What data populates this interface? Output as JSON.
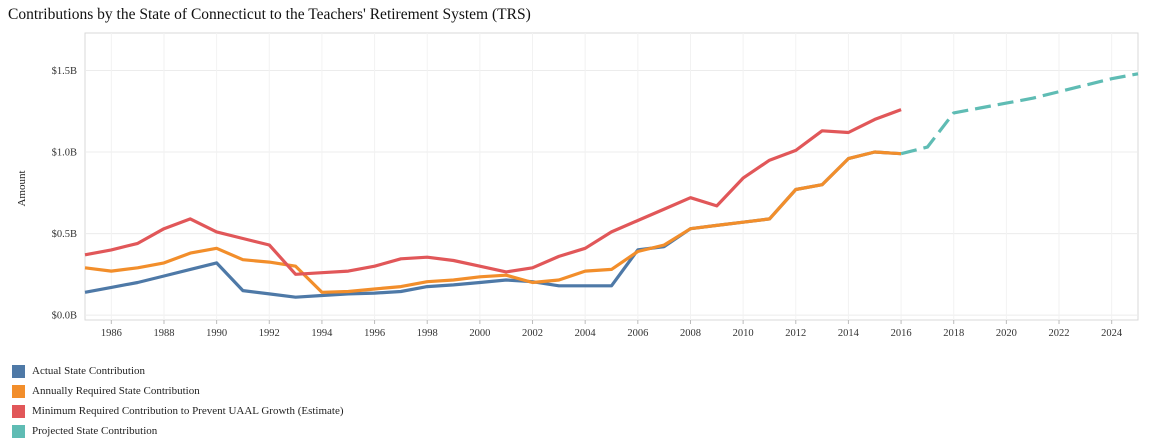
{
  "title": "Contributions by the State of Connecticut to the Teachers' Retirement System (TRS)",
  "chart_data": {
    "type": "line",
    "title": "Contributions by the State of Connecticut to the Teachers' Retirement System (TRS)",
    "ylabel": "Amount",
    "xlabel": "",
    "xlim": [
      1985,
      2025
    ],
    "ylim": [
      -0.03,
      1.73
    ],
    "grid": true,
    "legend_position": "bottom-left",
    "x_ticks": [
      1986,
      1988,
      1990,
      1992,
      1994,
      1996,
      1998,
      2000,
      2002,
      2004,
      2006,
      2008,
      2010,
      2012,
      2014,
      2016,
      2018,
      2020,
      2022,
      2024
    ],
    "y_ticks": [
      {
        "value": 0.0,
        "label": "$0.0B"
      },
      {
        "value": 0.5,
        "label": "$0.5B"
      },
      {
        "value": 1.0,
        "label": "$1.0B"
      },
      {
        "value": 1.5,
        "label": "$1.5B"
      }
    ],
    "series": [
      {
        "name": "Actual State Contribution",
        "color": "#4e79a7",
        "style": "solid",
        "points": [
          [
            1985,
            0.14
          ],
          [
            1986,
            0.17
          ],
          [
            1987,
            0.2
          ],
          [
            1988,
            0.24
          ],
          [
            1989,
            0.28
          ],
          [
            1990,
            0.32
          ],
          [
            1991,
            0.15
          ],
          [
            1992,
            0.13
          ],
          [
            1993,
            0.11
          ],
          [
            1994,
            0.12
          ],
          [
            1995,
            0.13
          ],
          [
            1996,
            0.135
          ],
          [
            1997,
            0.145
          ],
          [
            1998,
            0.175
          ],
          [
            1999,
            0.185
          ],
          [
            2000,
            0.2
          ],
          [
            2001,
            0.215
          ],
          [
            2002,
            0.205
          ],
          [
            2003,
            0.18
          ],
          [
            2004,
            0.18
          ],
          [
            2005,
            0.18
          ],
          [
            2006,
            0.4
          ],
          [
            2007,
            0.42
          ],
          [
            2008,
            0.53
          ],
          [
            2009,
            0.55
          ],
          [
            2010,
            0.57
          ],
          [
            2011,
            0.59
          ],
          [
            2012,
            0.77
          ],
          [
            2013,
            0.8
          ],
          [
            2014,
            0.96
          ],
          [
            2015,
            1.0
          ],
          [
            2016,
            0.99
          ]
        ]
      },
      {
        "name": "Annually Required State Contribution",
        "color": "#f28e2b",
        "style": "solid",
        "points": [
          [
            1985,
            0.29
          ],
          [
            1986,
            0.27
          ],
          [
            1987,
            0.29
          ],
          [
            1988,
            0.32
          ],
          [
            1989,
            0.38
          ],
          [
            1990,
            0.41
          ],
          [
            1991,
            0.34
          ],
          [
            1992,
            0.325
          ],
          [
            1993,
            0.3
          ],
          [
            1994,
            0.14
          ],
          [
            1995,
            0.145
          ],
          [
            1996,
            0.16
          ],
          [
            1997,
            0.175
          ],
          [
            1998,
            0.205
          ],
          [
            1999,
            0.215
          ],
          [
            2000,
            0.235
          ],
          [
            2001,
            0.245
          ],
          [
            2002,
            0.2
          ],
          [
            2003,
            0.215
          ],
          [
            2004,
            0.27
          ],
          [
            2005,
            0.28
          ],
          [
            2006,
            0.39
          ],
          [
            2007,
            0.43
          ],
          [
            2008,
            0.53
          ],
          [
            2009,
            0.55
          ],
          [
            2010,
            0.57
          ],
          [
            2011,
            0.59
          ],
          [
            2012,
            0.77
          ],
          [
            2013,
            0.8
          ],
          [
            2014,
            0.96
          ],
          [
            2015,
            1.0
          ],
          [
            2016,
            0.99
          ]
        ]
      },
      {
        "name": "Minimum Required Contribution to Prevent UAAL Growth (Estimate)",
        "color": "#e15759",
        "style": "solid",
        "points": [
          [
            1985,
            0.37
          ],
          [
            1986,
            0.4
          ],
          [
            1987,
            0.44
          ],
          [
            1988,
            0.53
          ],
          [
            1989,
            0.59
          ],
          [
            1990,
            0.51
          ],
          [
            1991,
            0.47
          ],
          [
            1992,
            0.43
          ],
          [
            1993,
            0.25
          ],
          [
            1994,
            0.26
          ],
          [
            1995,
            0.27
          ],
          [
            1996,
            0.3
          ],
          [
            1997,
            0.345
          ],
          [
            1998,
            0.355
          ],
          [
            1999,
            0.335
          ],
          [
            2000,
            0.3
          ],
          [
            2001,
            0.265
          ],
          [
            2002,
            0.29
          ],
          [
            2003,
            0.36
          ],
          [
            2004,
            0.41
          ],
          [
            2005,
            0.51
          ],
          [
            2006,
            0.58
          ],
          [
            2007,
            0.65
          ],
          [
            2008,
            0.72
          ],
          [
            2009,
            0.67
          ],
          [
            2010,
            0.84
          ],
          [
            2011,
            0.95
          ],
          [
            2012,
            1.01
          ],
          [
            2013,
            1.13
          ],
          [
            2014,
            1.12
          ],
          [
            2015,
            1.2
          ],
          [
            2016,
            1.26
          ]
        ]
      },
      {
        "name": "Projected State Contribution",
        "color": "#5fbcb4",
        "style": "dashed",
        "points": [
          [
            2016,
            0.99
          ],
          [
            2017,
            1.03
          ],
          [
            2018,
            1.24
          ],
          [
            2019,
            1.27
          ],
          [
            2020,
            1.3
          ],
          [
            2021,
            1.33
          ],
          [
            2022,
            1.37
          ],
          [
            2023,
            1.41
          ],
          [
            2024,
            1.45
          ],
          [
            2025,
            1.48
          ]
        ]
      }
    ]
  }
}
